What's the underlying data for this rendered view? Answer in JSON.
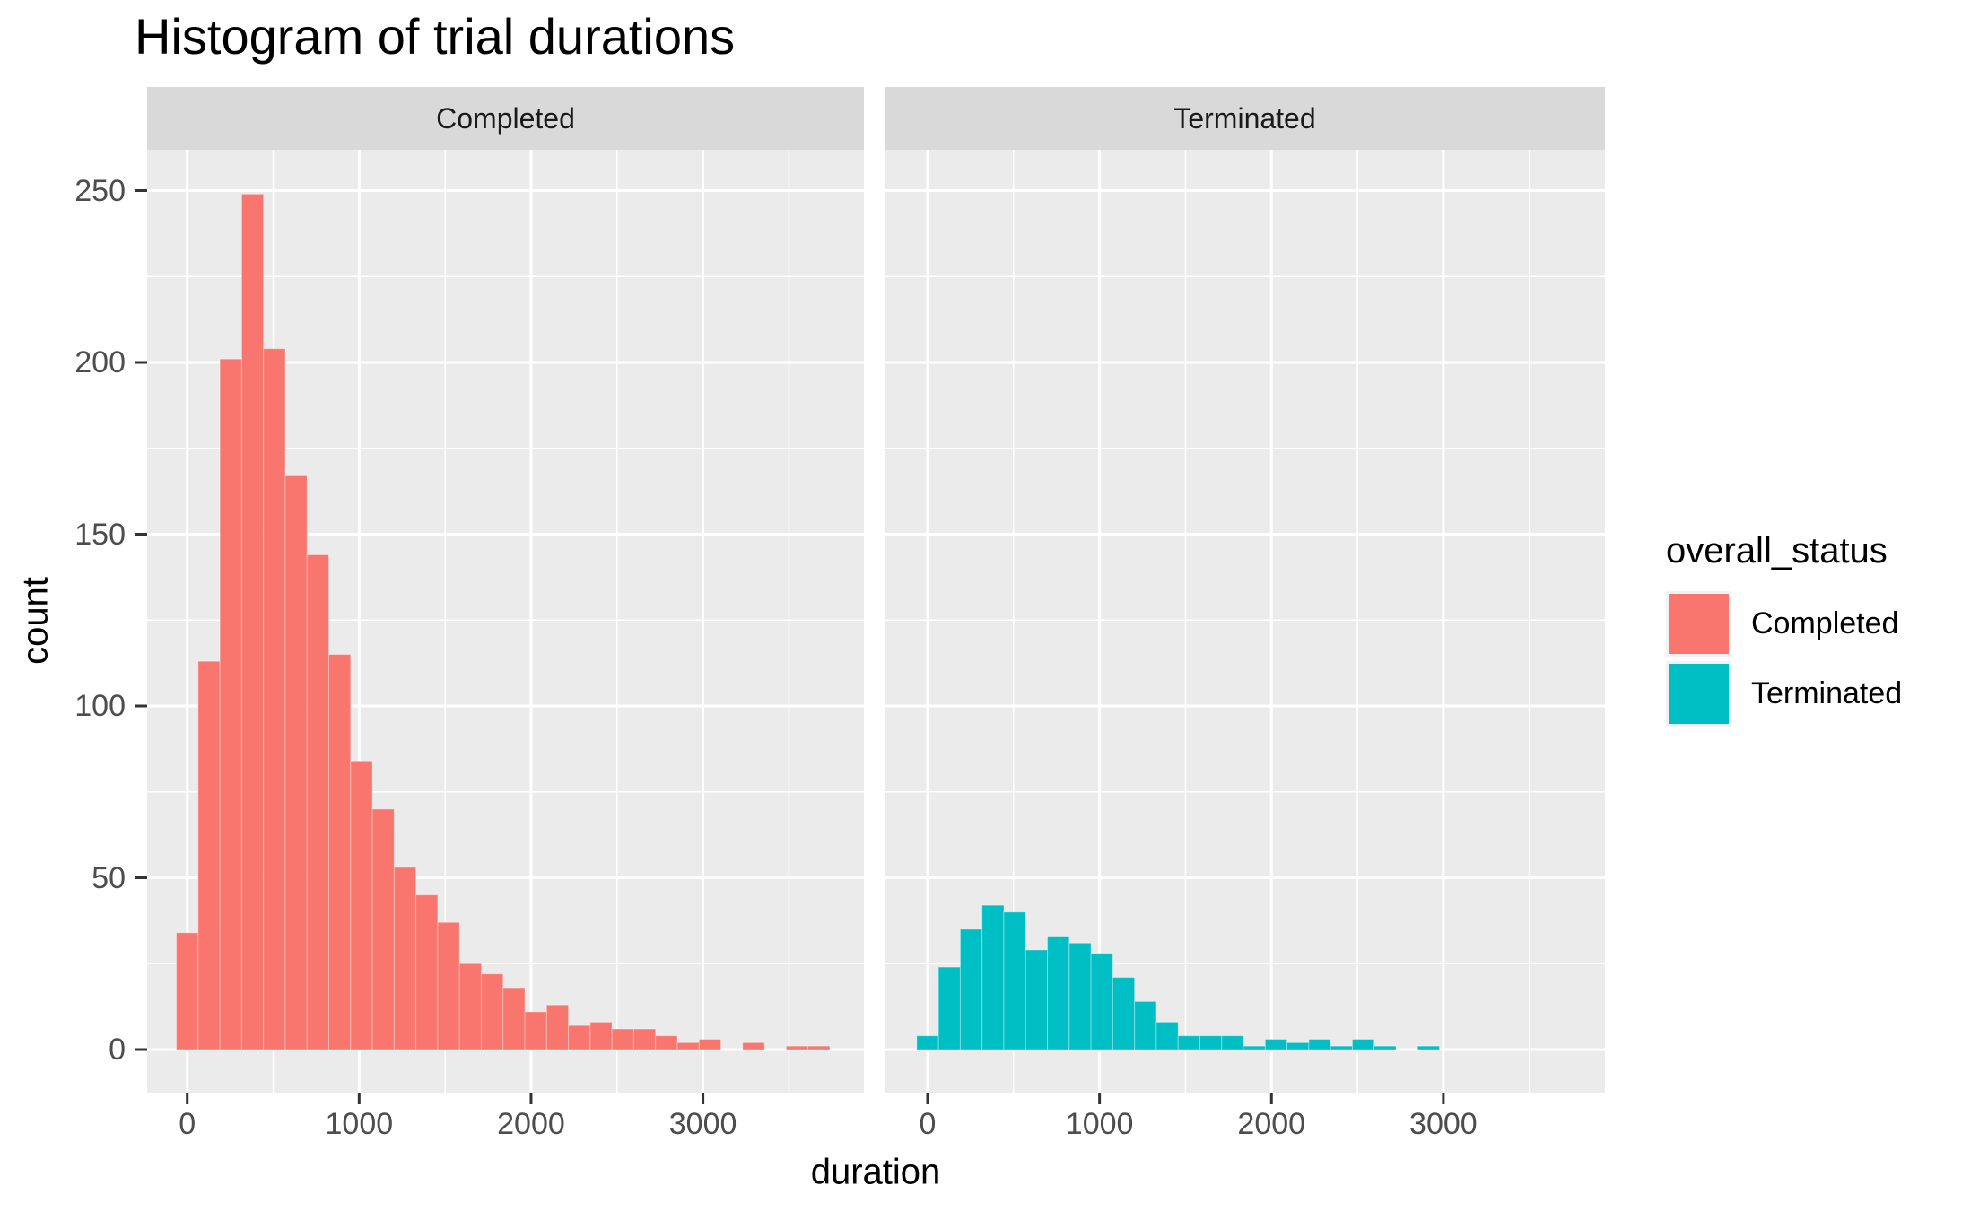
{
  "chart_data": {
    "type": "bar",
    "subtype": "faceted-histogram",
    "title": "Histogram of trial durations",
    "xlabel": "duration",
    "ylabel": "count",
    "legend_title": "overall_status",
    "legend_position": "right",
    "grid": true,
    "facet_labels": [
      "Completed",
      "Terminated"
    ],
    "x_tick_labels": [
      "0",
      "1000",
      "2000",
      "3000"
    ],
    "x_tick_values": [
      0,
      1000,
      2000,
      3000
    ],
    "x_minor_values": [
      500,
      1500,
      2500,
      3500
    ],
    "y_tick_labels": [
      "0",
      "50",
      "100",
      "150",
      "200",
      "250"
    ],
    "y_tick_values": [
      0,
      50,
      100,
      150,
      200,
      250
    ],
    "y_minor_values": [
      25,
      75,
      125,
      175,
      225
    ],
    "ylim": [
      0,
      262
    ],
    "x_range_displayed": [
      -230,
      3930
    ],
    "binwidth": 126.7,
    "bin_centers": [
      0,
      126.7,
      253.4,
      380.1,
      506.8,
      633.5,
      760.2,
      886.9,
      1013.6,
      1140.3,
      1267,
      1393.7,
      1520.4,
      1647.1,
      1773.8,
      1900.5,
      2027.2,
      2153.9,
      2280.6,
      2407.3,
      2534,
      2660.7,
      2787.4,
      2914.1,
      3040.8,
      3167.5,
      3294.2,
      3420.9,
      3547.6,
      3674.3
    ],
    "series": [
      {
        "name": "Completed",
        "color": "#F8766D",
        "counts": [
          34,
          113,
          201,
          249,
          204,
          167,
          144,
          115,
          84,
          70,
          53,
          45,
          37,
          25,
          22,
          18,
          11,
          13,
          7,
          8,
          6,
          6,
          4,
          2,
          3,
          0,
          2,
          0,
          1,
          1
        ]
      },
      {
        "name": "Terminated",
        "color": "#00BFC4",
        "counts": [
          4,
          24,
          35,
          42,
          40,
          29,
          33,
          31,
          28,
          21,
          14,
          8,
          4,
          4,
          4,
          1,
          3,
          2,
          3,
          1,
          3,
          1,
          0,
          1,
          0,
          0,
          0,
          0,
          0,
          0
        ]
      }
    ],
    "colors": {
      "panel_background": "#EBEBEB",
      "strip_background": "#D9D9D9",
      "gridline": "#FFFFFF",
      "tick_mark": "#333333",
      "tick_label": "#4D4D4D",
      "completed_fill": "#F8766D",
      "terminated_fill": "#00BFC4"
    }
  }
}
